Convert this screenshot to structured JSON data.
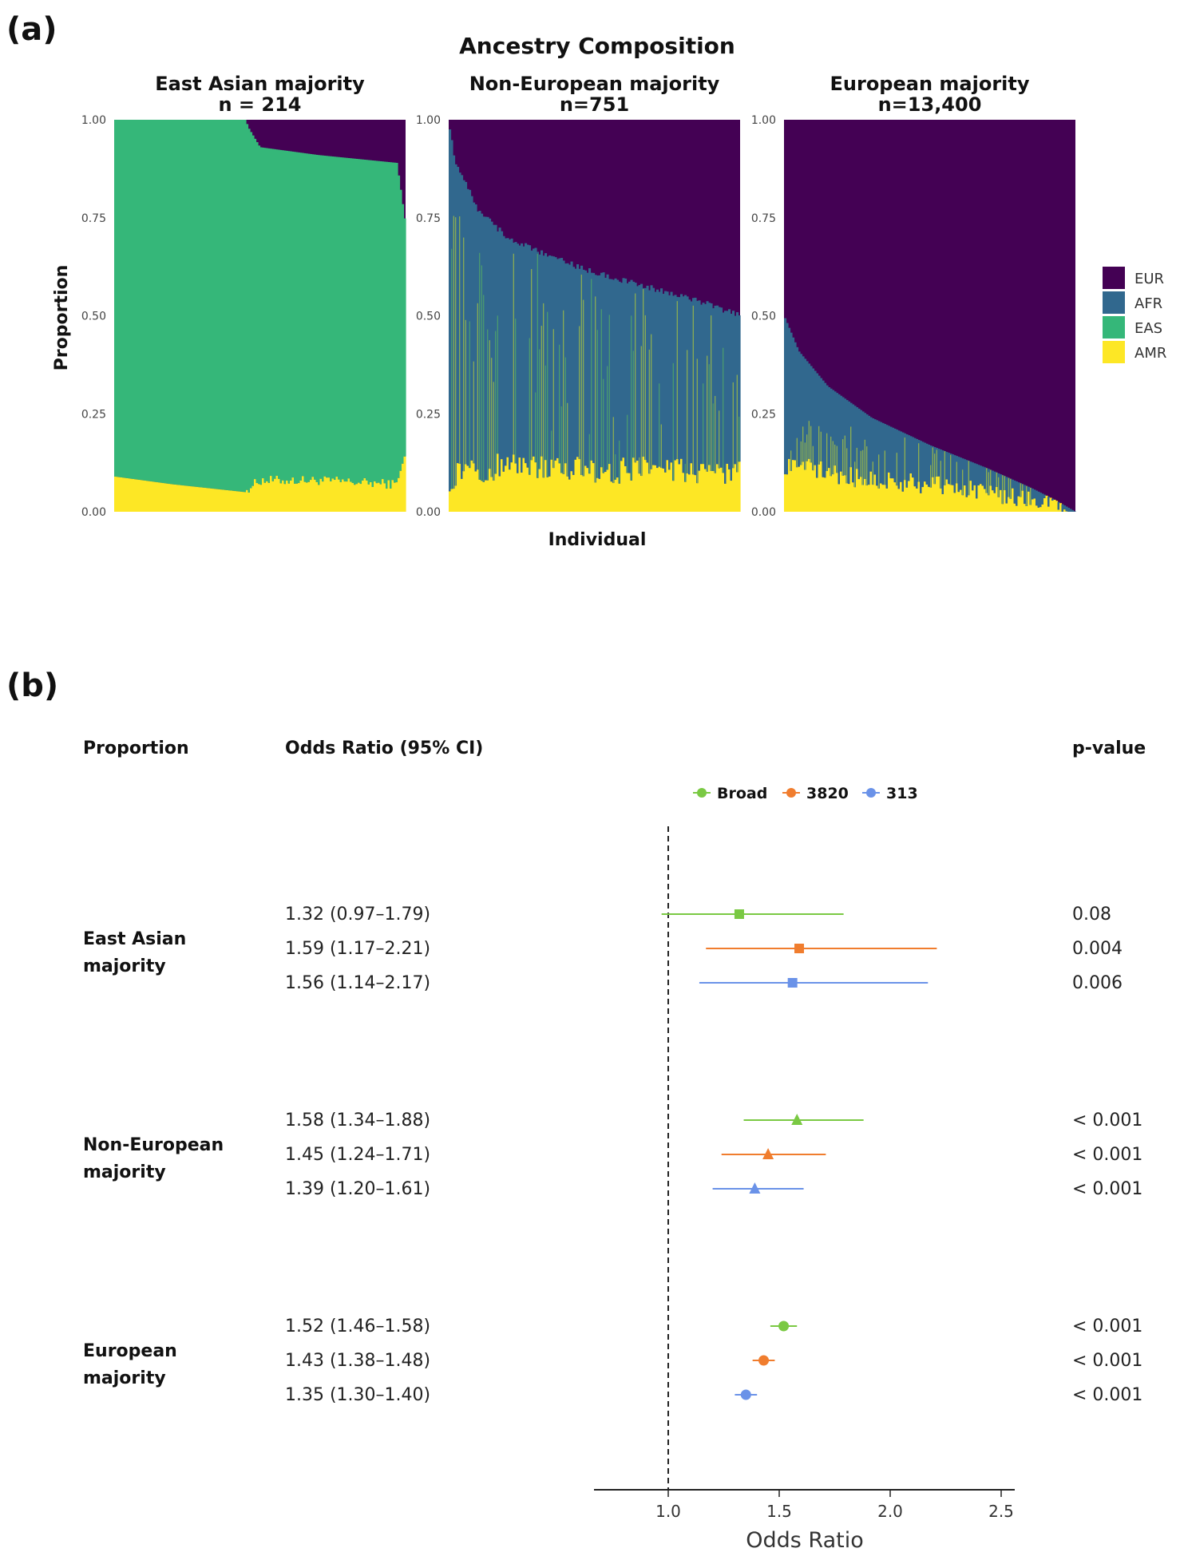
{
  "panel_a": {
    "label": "(a)",
    "title": "Ancestry Composition",
    "ylabel": "Proportion",
    "xlabel": "Individual",
    "y_ticks": [
      "0.00",
      "0.25",
      "0.50",
      "0.75",
      "1.00"
    ],
    "legend": [
      {
        "name": "EUR",
        "color": "#440154"
      },
      {
        "name": "AFR",
        "color": "#31688E"
      },
      {
        "name": "EAS",
        "color": "#35B779"
      },
      {
        "name": "AMR",
        "color": "#FDE725"
      }
    ],
    "facets": [
      {
        "title": "East Asian majority",
        "n_label": "n = 214"
      },
      {
        "title": "Non-European majority",
        "n_label": "n=751"
      },
      {
        "title": "European majority",
        "n_label": "n=13,400"
      }
    ]
  },
  "panel_b": {
    "label": "(b)",
    "col_proportion": "Proportion",
    "col_or": "Odds Ratio (95% CI)",
    "col_p": "p-value",
    "legend": [
      {
        "name": "Broad",
        "color": "#7AC943"
      },
      {
        "name": "3820",
        "color": "#F07D2E"
      },
      {
        "name": "313",
        "color": "#6A92E8"
      }
    ],
    "xlabel": "Odds Ratio",
    "x_ticks": [
      "1.0",
      "1.5",
      "2.0",
      "2.5"
    ],
    "groups": [
      {
        "label_line1": "East Asian",
        "label_line2": "majority",
        "shape": "square",
        "rows": [
          {
            "text": "1.32 (0.97–1.79)",
            "p": "0.08"
          },
          {
            "text": "1.59 (1.17–2.21)",
            "p": "0.004"
          },
          {
            "text": "1.56 (1.14–2.17)",
            "p": "0.006"
          }
        ]
      },
      {
        "label_line1": "Non-European",
        "label_line2": "majority",
        "shape": "triangle",
        "rows": [
          {
            "text": "1.58 (1.34–1.88)",
            "p": "< 0.001"
          },
          {
            "text": "1.45 (1.24–1.71)",
            "p": "< 0.001"
          },
          {
            "text": "1.39 (1.20–1.61)",
            "p": "< 0.001"
          }
        ]
      },
      {
        "label_line1": "European",
        "label_line2": "majority",
        "shape": "circle",
        "rows": [
          {
            "text": "1.52 (1.46–1.58)",
            "p": "< 0.001"
          },
          {
            "text": "1.43 (1.38–1.48)",
            "p": "< 0.001"
          },
          {
            "text": "1.35 (1.30–1.40)",
            "p": "< 0.001"
          }
        ]
      }
    ]
  },
  "chart_data": [
    {
      "type": "area",
      "title": "Ancestry Composition",
      "xlabel": "Individual",
      "ylabel": "Proportion",
      "ylim": [
        0,
        1
      ],
      "stack_order_bottom_to_top": [
        "AMR",
        "EAS",
        "AFR",
        "EUR"
      ],
      "facets": [
        {
          "name": "East Asian majority",
          "n": 214,
          "profile_x": [
            0,
            0.2,
            0.45,
            0.46,
            0.5,
            0.7,
            0.97,
            1.0
          ],
          "AMR": [
            0.09,
            0.07,
            0.05,
            0.06,
            0.08,
            0.08,
            0.07,
            0.15
          ],
          "EAS_top": [
            1.0,
            1.0,
            1.0,
            0.98,
            0.93,
            0.91,
            0.89,
            0.73
          ],
          "AFR_top": [
            1.0,
            1.0,
            1.0,
            0.98,
            0.93,
            0.91,
            0.88,
            0.73
          ]
        },
        {
          "name": "Non-European majority",
          "n": 751,
          "profile_x": [
            0,
            0.02,
            0.1,
            0.2,
            0.35,
            0.5,
            0.7,
            0.85,
            1.0
          ],
          "AMR": [
            0.08,
            0.09,
            0.1,
            0.12,
            0.12,
            0.1,
            0.11,
            0.1,
            0.1
          ],
          "AFR_top": [
            1.0,
            0.9,
            0.77,
            0.7,
            0.65,
            0.61,
            0.57,
            0.54,
            0.5
          ]
        },
        {
          "name": "European majority",
          "n": 13400,
          "profile_x": [
            0,
            0.05,
            0.15,
            0.3,
            0.5,
            0.7,
            0.85,
            0.93,
            1.0
          ],
          "AMR": [
            0.12,
            0.12,
            0.1,
            0.08,
            0.07,
            0.05,
            0.03,
            0.02,
            0.0
          ],
          "AFR_top": [
            0.5,
            0.41,
            0.32,
            0.24,
            0.17,
            0.11,
            0.06,
            0.03,
            0.0
          ]
        }
      ],
      "legend": [
        "EUR",
        "AFR",
        "EAS",
        "AMR"
      ]
    },
    {
      "type": "scatter",
      "subtype": "forest",
      "xlabel": "Odds Ratio",
      "xlim": [
        0.66,
        2.55
      ],
      "reference_line": 1.0,
      "series": [
        {
          "name": "Broad",
          "color": "#7AC943"
        },
        {
          "name": "3820",
          "color": "#F07D2E"
        },
        {
          "name": "313",
          "color": "#6A92E8"
        }
      ],
      "points": [
        {
          "group": "East Asian majority",
          "series": "Broad",
          "or": 1.32,
          "lo": 0.97,
          "hi": 1.79,
          "p": "0.08"
        },
        {
          "group": "East Asian majority",
          "series": "3820",
          "or": 1.59,
          "lo": 1.17,
          "hi": 2.21,
          "p": "0.004"
        },
        {
          "group": "East Asian majority",
          "series": "313",
          "or": 1.56,
          "lo": 1.14,
          "hi": 2.17,
          "p": "0.006"
        },
        {
          "group": "Non-European majority",
          "series": "Broad",
          "or": 1.58,
          "lo": 1.34,
          "hi": 1.88,
          "p": "< 0.001"
        },
        {
          "group": "Non-European majority",
          "series": "3820",
          "or": 1.45,
          "lo": 1.24,
          "hi": 1.71,
          "p": "< 0.001"
        },
        {
          "group": "Non-European majority",
          "series": "313",
          "or": 1.39,
          "lo": 1.2,
          "hi": 1.61,
          "p": "< 0.001"
        },
        {
          "group": "European majority",
          "series": "Broad",
          "or": 1.52,
          "lo": 1.46,
          "hi": 1.58,
          "p": "< 0.001"
        },
        {
          "group": "European majority",
          "series": "3820",
          "or": 1.43,
          "lo": 1.38,
          "hi": 1.48,
          "p": "< 0.001"
        },
        {
          "group": "European majority",
          "series": "313",
          "or": 1.35,
          "lo": 1.3,
          "hi": 1.4,
          "p": "< 0.001"
        }
      ]
    }
  ]
}
